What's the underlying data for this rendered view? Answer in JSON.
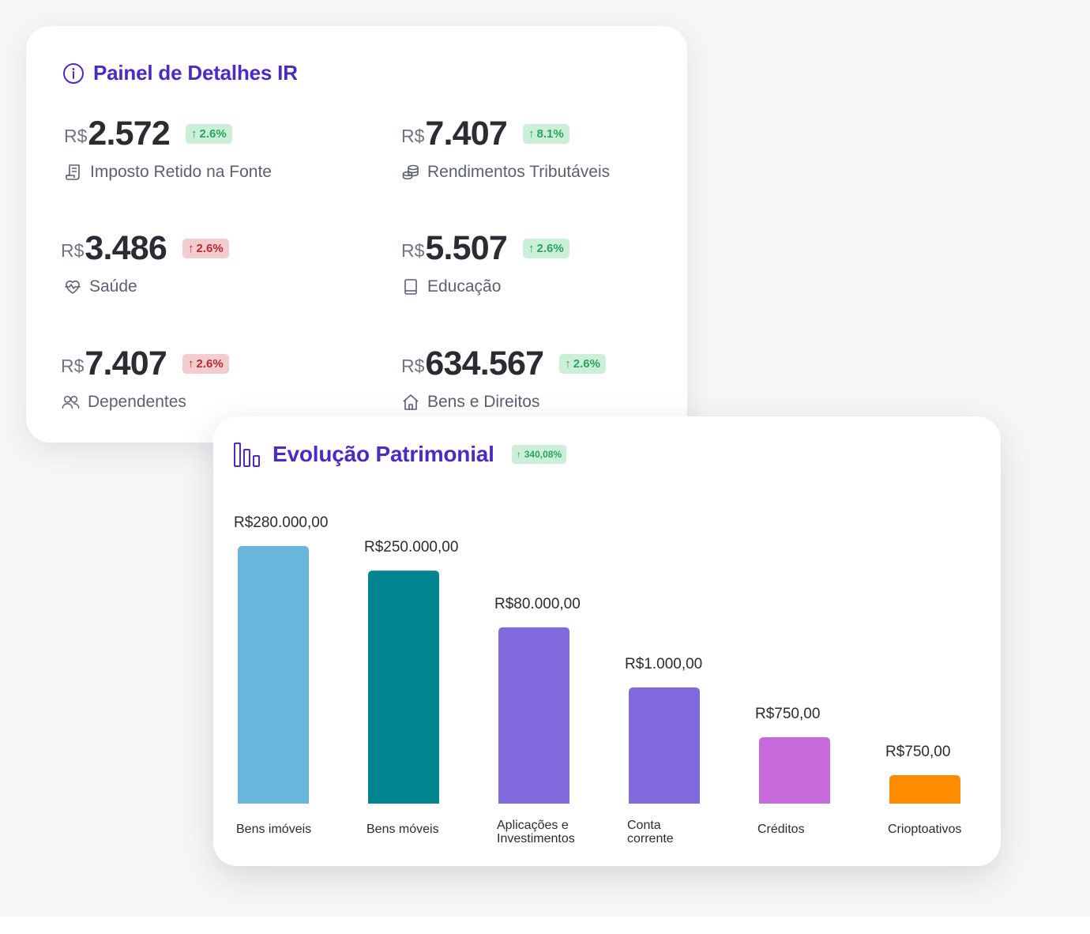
{
  "panel": {
    "title": "Painel de Detalhes IR",
    "metrics": [
      {
        "currency": "R$",
        "amount": "2.572",
        "change": "2.6%",
        "trend": "up",
        "label": "Imposto Retido na Fonte",
        "icon": "receipt-icon"
      },
      {
        "currency": "R$",
        "amount": "7.407",
        "change": "8.1%",
        "trend": "up",
        "label": "Rendimentos Tributáveis",
        "icon": "coins-icon"
      },
      {
        "currency": "R$",
        "amount": "3.486",
        "change": "2.6%",
        "trend": "down",
        "label": "Saúde",
        "icon": "heart-pulse-icon"
      },
      {
        "currency": "R$",
        "amount": "5.507",
        "change": "2.6%",
        "trend": "up",
        "label": "Educação",
        "icon": "book-icon"
      },
      {
        "currency": "R$",
        "amount": "7.407",
        "change": "2.6%",
        "trend": "down",
        "label": "Dependentes",
        "icon": "users-icon"
      },
      {
        "currency": "R$",
        "amount": "634.567",
        "change": "2.6%",
        "trend": "up",
        "label": "Bens e Direitos",
        "icon": "home-icon"
      }
    ]
  },
  "evolution": {
    "title": "Evolução Patrimonial",
    "change": "340,08%"
  },
  "colors": {
    "accent": "#4b2bc4",
    "badge_up_bg": "#ccefd9",
    "badge_up_text": "#2aa55c",
    "badge_down_bg": "#f2cccf",
    "badge_down_text": "#b92b33"
  },
  "chart_data": {
    "type": "bar",
    "title": "Evolução Patrimonial",
    "categories": [
      [
        "Bens imóveis"
      ],
      [
        "Bens móveis"
      ],
      [
        "Aplicações e",
        "Investimentos"
      ],
      [
        "Conta",
        "corrente"
      ],
      [
        "Créditos"
      ],
      [
        "Crioptoativos"
      ]
    ],
    "values": [
      280000,
      250000,
      80000,
      1000,
      750,
      750
    ],
    "value_labels": [
      "R$280.000,00",
      "R$250.000,00",
      "R$80.000,00",
      "R$1.000,00",
      "R$750,00",
      "R$750,00"
    ],
    "colors": [
      "#69b6dc",
      "#008490",
      "#826ade",
      "#826ade",
      "#c76bdc",
      "#ff8b00"
    ],
    "grid": false,
    "legend": "none"
  }
}
